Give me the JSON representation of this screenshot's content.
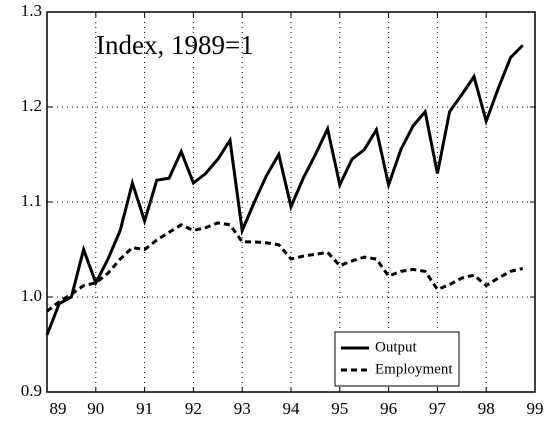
{
  "chart_data": {
    "type": "line",
    "annotation": "Index, 1989=1",
    "x": [
      89,
      89.25,
      89.5,
      89.75,
      90,
      90.25,
      90.5,
      90.75,
      91,
      91.25,
      91.5,
      91.75,
      92,
      92.25,
      92.5,
      92.75,
      93,
      93.25,
      93.5,
      93.75,
      94,
      94.25,
      94.5,
      94.75,
      95,
      95.25,
      95.5,
      95.75,
      96,
      96.25,
      96.5,
      96.75,
      97,
      97.25,
      97.5,
      97.75,
      98,
      98.25,
      98.5,
      98.75
    ],
    "series": [
      {
        "name": "Output",
        "color": "#000000",
        "linestyle": "solid",
        "values": [
          0.96,
          0.993,
          1.0,
          1.05,
          1.015,
          1.04,
          1.07,
          1.12,
          1.08,
          1.123,
          1.125,
          1.153,
          1.12,
          1.13,
          1.145,
          1.165,
          1.07,
          1.1,
          1.128,
          1.15,
          1.095,
          1.125,
          1.15,
          1.177,
          1.118,
          1.145,
          1.155,
          1.176,
          1.118,
          1.155,
          1.18,
          1.195,
          1.13,
          1.195,
          1.213,
          1.232,
          1.185,
          1.22,
          1.252,
          1.265
        ]
      },
      {
        "name": "Employment",
        "color": "#000000",
        "linestyle": "dashed",
        "values": [
          0.985,
          0.995,
          1.003,
          1.012,
          1.015,
          1.025,
          1.04,
          1.052,
          1.05,
          1.06,
          1.068,
          1.076,
          1.07,
          1.073,
          1.078,
          1.076,
          1.058,
          1.058,
          1.057,
          1.055,
          1.04,
          1.043,
          1.045,
          1.047,
          1.033,
          1.038,
          1.042,
          1.04,
          1.022,
          1.027,
          1.029,
          1.027,
          1.008,
          1.013,
          1.02,
          1.023,
          1.012,
          1.02,
          1.027,
          1.03
        ]
      }
    ],
    "xlim": [
      89,
      99
    ],
    "xticks": [
      89,
      90,
      91,
      92,
      93,
      94,
      95,
      96,
      97,
      98,
      99
    ],
    "ylim": [
      0.9,
      1.3
    ],
    "yticks": [
      0.9,
      {
        "value": 1,
        "label": "1.0"
      },
      1.1,
      1.2,
      1.3
    ],
    "grid": true,
    "legend": "lower right"
  }
}
